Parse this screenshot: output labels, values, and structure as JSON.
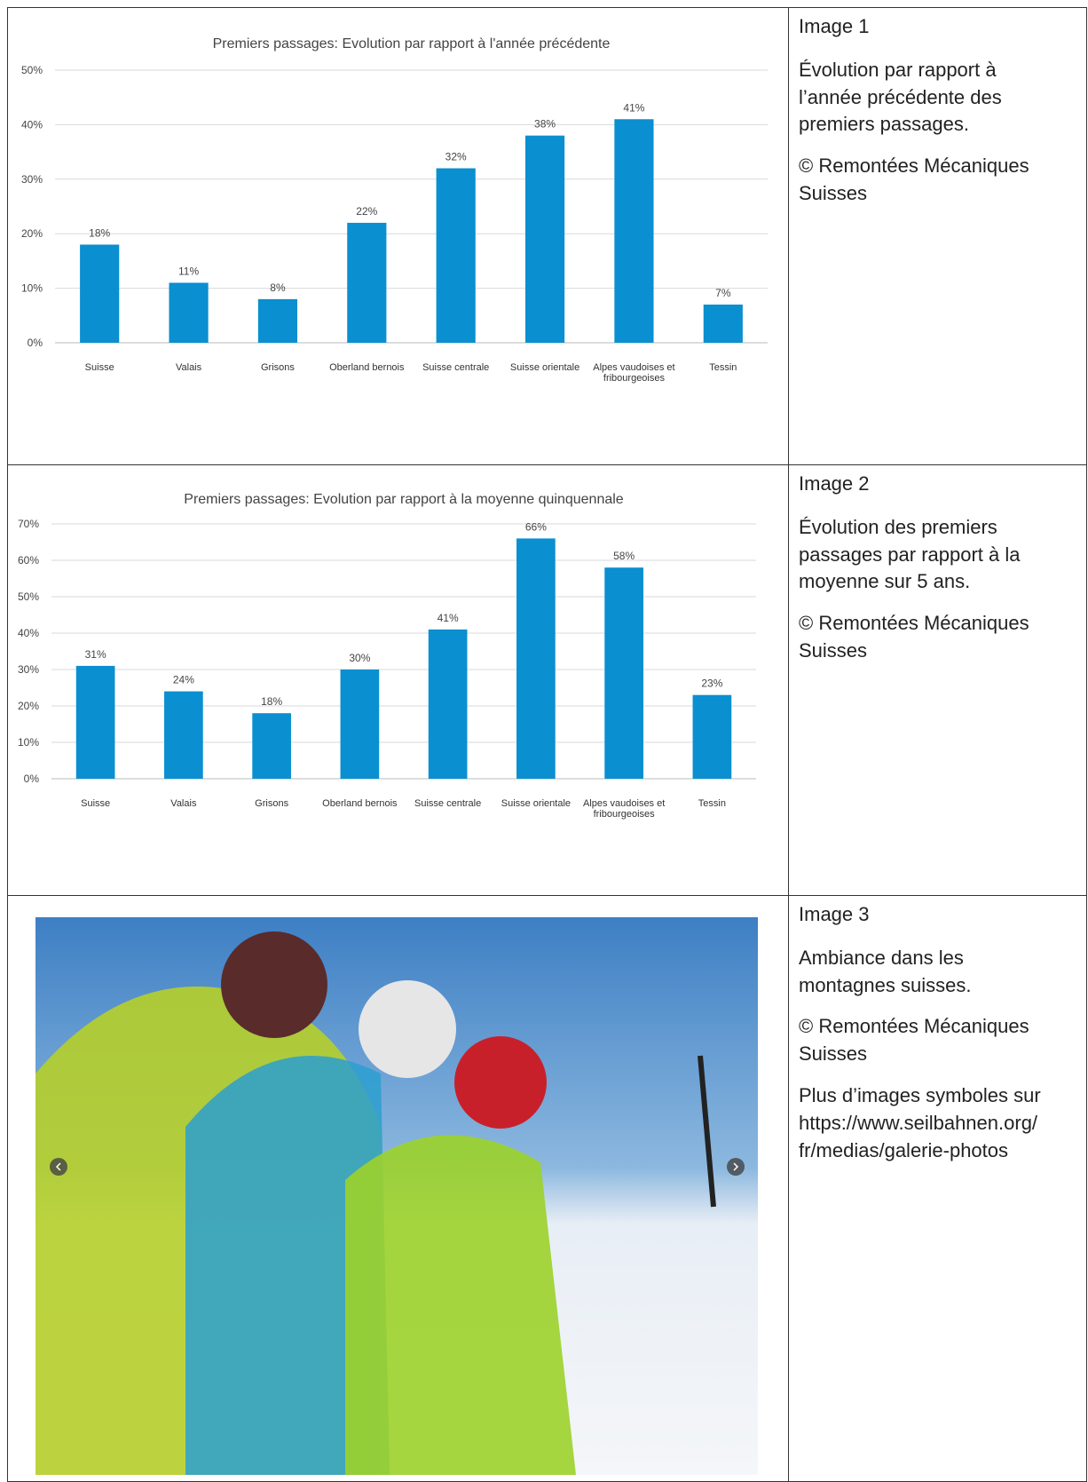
{
  "chart_data": [
    {
      "type": "bar",
      "title": "Premiers passages: Evolution par rapport à l'année précédente",
      "categories": [
        "Suisse",
        "Valais",
        "Grisons",
        "Oberland bernois",
        "Suisse centrale",
        "Suisse orientale",
        "Alpes vaudoises et fribourgeoises",
        "Tessin"
      ],
      "values": [
        18,
        11,
        8,
        22,
        32,
        38,
        41,
        7
      ],
      "value_labels": [
        "18%",
        "11%",
        "8%",
        "22%",
        "32%",
        "38%",
        "41%",
        "7%"
      ],
      "color": "#0a8fd0",
      "ylim": [
        0,
        50
      ],
      "yticks": [
        {
          "value": 0,
          "label": "0%"
        },
        {
          "value": 10,
          "label": "10%"
        },
        {
          "value": 20,
          "label": "20%"
        },
        {
          "value": 30,
          "label": "30%"
        },
        {
          "value": 40,
          "label": "40%"
        },
        {
          "value": 50,
          "label": "50%"
        }
      ],
      "grid": true
    },
    {
      "type": "bar",
      "title": "Premiers passages: Evolution par rapport à la moyenne quinquennale",
      "categories": [
        "Suisse",
        "Valais",
        "Grisons",
        "Oberland bernois",
        "Suisse centrale",
        "Suisse orientale",
        "Alpes vaudoises et fribourgeoises",
        "Tessin"
      ],
      "values": [
        31,
        24,
        18,
        30,
        41,
        66,
        58,
        23
      ],
      "value_labels": [
        "31%",
        "24%",
        "18%",
        "30%",
        "41%",
        "66%",
        "58%",
        "23%"
      ],
      "color": "#0a8fd0",
      "ylim": [
        0,
        70
      ],
      "yticks": [
        {
          "value": 0,
          "label": "0%"
        },
        {
          "value": 10,
          "label": "10%"
        },
        {
          "value": 20,
          "label": "20%"
        },
        {
          "value": 30,
          "label": "30%"
        },
        {
          "value": 40,
          "label": "40%"
        },
        {
          "value": 50,
          "label": "50%"
        },
        {
          "value": 60,
          "label": "60%"
        },
        {
          "value": 70,
          "label": "70%"
        }
      ],
      "grid": true
    }
  ],
  "captions": [
    {
      "label": "Image 1",
      "paragraphs": [
        "Évolution par rapport à l’année précédente des premiers passages.",
        "© Remontées Mécaniques Suisses"
      ]
    },
    {
      "label": "Image 2",
      "paragraphs": [
        "Évolution des premiers passages par rapport à la moyenne sur 5 ans.",
        "© Remontées Mécaniques Suisses"
      ]
    },
    {
      "label": "Image 3",
      "paragraphs": [
        "Ambiance dans les montagnes suisses.",
        "© Remontées Mécaniques Suisses",
        "Plus d’images symboles sur https://www.seilbahnen.org/fr/medias/galerie-photos"
      ]
    }
  ]
}
